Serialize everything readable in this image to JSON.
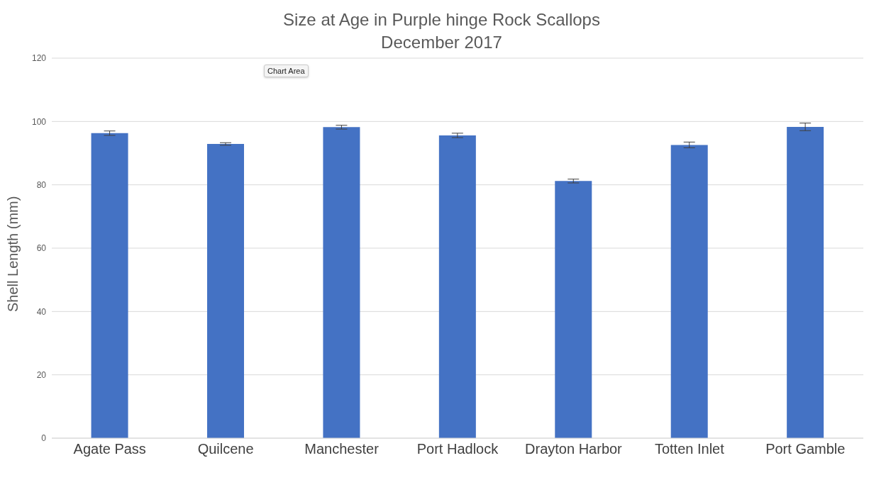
{
  "chart_data": {
    "type": "bar",
    "title": "Size at Age in Purple hinge Rock Scallops",
    "subtitle": "December 2017",
    "ylabel": "Shell Length (mm)",
    "categories": [
      "Agate Pass",
      "Quilcene",
      "Manchester",
      "Port Hadlock",
      "Drayton Harbor",
      "Totten Inlet",
      "Port Gamble"
    ],
    "values": [
      96.3,
      92.9,
      98.2,
      95.6,
      81.2,
      92.6,
      98.3
    ],
    "errors": [
      0.7,
      0.4,
      0.6,
      0.7,
      0.6,
      0.9,
      1.2
    ],
    "color": "#4472c4",
    "ylim": [
      0,
      120
    ],
    "yticks": [
      0,
      20,
      40,
      60,
      80,
      100,
      120
    ],
    "grid": "y",
    "annotations": [
      "Chart Area"
    ]
  }
}
